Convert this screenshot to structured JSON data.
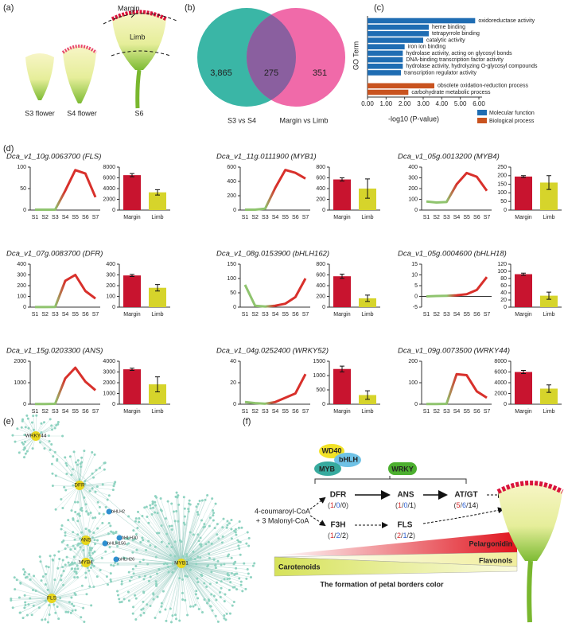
{
  "panels": {
    "a": {
      "label": "(a)",
      "margin": "Margin",
      "limb": "Limb",
      "stages": [
        "S3 flower",
        "S4 flower",
        "S6"
      ]
    },
    "b": {
      "label": "(b)",
      "only_left": "3,865",
      "overlap": "275",
      "only_right": "351",
      "left_name": "S3 vs S4",
      "right_name": "Margin vs Limb"
    },
    "c": {
      "label": "(c)"
    },
    "d": {
      "label": "(d)"
    },
    "e": {
      "label": "(e)",
      "nodes": [
        "WRKY44",
        "DFR",
        "ANS",
        "MYB4",
        "FLS",
        "MYB1",
        "bHLH2",
        "bHLH156",
        "bHLH30",
        "bHLH26"
      ]
    },
    "f": {
      "label": "(f)",
      "regulators": [
        "WD40",
        "bHLH",
        "MYB",
        "WRKY"
      ],
      "substrate": [
        "4-coumaroyl-CoA",
        "+ 3 Malonyl-CoA"
      ],
      "steps": [
        {
          "name": "DFR",
          "counts": [
            "(",
            "1",
            "/",
            "0",
            "/",
            "0",
            ")"
          ]
        },
        {
          "name": "ANS",
          "counts": [
            "(",
            "1",
            "/",
            "0",
            "/",
            "1",
            ")"
          ]
        },
        {
          "name": "AT/GT",
          "counts": [
            "(",
            "5",
            "/",
            "6",
            "/",
            "14",
            ")"
          ]
        },
        {
          "name": "F3H",
          "counts": [
            "(",
            "1",
            "/",
            "2",
            "/",
            "2",
            ")"
          ]
        },
        {
          "name": "FLS",
          "counts": [
            "(",
            "2",
            "/",
            "1",
            "/",
            "2",
            ")"
          ]
        }
      ],
      "pigments": [
        "Pelargonidin",
        "Flavonols",
        "Carotenoids"
      ],
      "caption": "The formation of petal borders color"
    }
  },
  "chart_data": [
    {
      "type": "hbar",
      "ylabel": "GO Term",
      "xlabel": "-log10 (P-value)",
      "categories": [
        "oxidoreductase activity",
        "heme binding",
        "tetrapyrrole binding",
        "catalytic activity",
        "iron ion binding",
        "hydrolase activity, acting on glycosyl bonds",
        "DNA-binding transcription factor activity",
        "hydrolase activity, hydrolyzing O-glycosyl compounds",
        "transcription regulator activity",
        null,
        "obsolete oxidation-reduction process",
        "carbohydrate metabolic process"
      ],
      "series": [
        {
          "name": "Molecular function",
          "color": "#1f6db3",
          "values": [
            5.8,
            3.3,
            3.3,
            3.0,
            2.0,
            1.9,
            1.9,
            1.9,
            1.8,
            null,
            null,
            null
          ]
        },
        {
          "name": "Biological process",
          "color": "#c9531f",
          "values": [
            null,
            null,
            null,
            null,
            null,
            null,
            null,
            null,
            null,
            null,
            3.6,
            2.2
          ]
        }
      ],
      "xlim": [
        0,
        6
      ],
      "xticks": [
        {
          "value": 0,
          "label": "0.00"
        },
        {
          "value": 1,
          "label": "1.00"
        },
        {
          "value": 2,
          "label": "2.00"
        },
        {
          "value": 3,
          "label": "3.00"
        },
        {
          "value": 4,
          "label": "4.00"
        },
        {
          "value": 5,
          "label": "5.00"
        },
        {
          "value": 6,
          "label": "6.00"
        }
      ]
    },
    {
      "type": "line",
      "title": "Dca_v1_10g.0063700 (FLS)",
      "categories": [
        "S1",
        "S2",
        "S3",
        "S4",
        "S5",
        "S6",
        "S7"
      ],
      "values": [
        1,
        1,
        1,
        45,
        93,
        85,
        30
      ],
      "ylim": [
        0,
        100
      ],
      "yticks": [
        0,
        50,
        100
      ],
      "colors": [
        "#8fc46e",
        "#d8302b"
      ]
    },
    {
      "type": "bar",
      "categories": [
        "Margin",
        "Limb"
      ],
      "values": [
        6500,
        3300
      ],
      "errors": [
        300,
        500
      ],
      "colors": [
        "#c8142f",
        "#d6d42b"
      ],
      "ylim": [
        0,
        8000
      ],
      "yticks": [
        0,
        2000,
        4000,
        6000,
        8000
      ]
    },
    {
      "type": "line",
      "title": "Dca_v1_11g.0111900 (MYB1)",
      "categories": [
        "S1",
        "S2",
        "S3",
        "S4",
        "S5",
        "S6",
        "S7"
      ],
      "values": [
        5,
        5,
        20,
        310,
        560,
        520,
        440
      ],
      "ylim": [
        0,
        600
      ],
      "yticks": [
        0,
        200,
        400,
        600
      ],
      "colors": [
        "#8fc46e",
        "#d8302b"
      ]
    },
    {
      "type": "bar",
      "categories": [
        "Margin",
        "Limb"
      ],
      "values": [
        570,
        400
      ],
      "errors": [
        30,
        180
      ],
      "colors": [
        "#c8142f",
        "#d6d42b"
      ],
      "ylim": [
        0,
        800
      ],
      "yticks": [
        0,
        200,
        400,
        600,
        800
      ]
    },
    {
      "type": "line",
      "title": "Dca_v1_05g.0013200 (MYB4)",
      "categories": [
        "S1",
        "S2",
        "S3",
        "S4",
        "S5",
        "S6",
        "S7"
      ],
      "values": [
        80,
        70,
        75,
        240,
        345,
        310,
        180
      ],
      "ylim": [
        0,
        400
      ],
      "yticks": [
        0,
        100,
        200,
        300,
        400
      ],
      "colors": [
        "#8fc46e",
        "#d8302b"
      ]
    },
    {
      "type": "bar",
      "categories": [
        "Margin",
        "Limb"
      ],
      "values": [
        195,
        160
      ],
      "errors": [
        5,
        40
      ],
      "colors": [
        "#c8142f",
        "#d6d42b"
      ],
      "ylim": [
        0,
        250
      ],
      "yticks": [
        0,
        50,
        100,
        150,
        200,
        250
      ]
    },
    {
      "type": "line",
      "title": "Dca_v1_07g.0083700 (DFR)",
      "categories": [
        "S1",
        "S2",
        "S3",
        "S4",
        "S5",
        "S6",
        "S7"
      ],
      "values": [
        1,
        1,
        2,
        245,
        300,
        150,
        80
      ],
      "ylim": [
        0,
        400
      ],
      "yticks": [
        0,
        100,
        200,
        300,
        400
      ],
      "colors": [
        "#8fc46e",
        "#d8302b"
      ]
    },
    {
      "type": "bar",
      "categories": [
        "Margin",
        "Limb"
      ],
      "values": [
        295,
        180
      ],
      "errors": [
        10,
        30
      ],
      "colors": [
        "#c8142f",
        "#d6d42b"
      ],
      "ylim": [
        0,
        400
      ],
      "yticks": [
        0,
        100,
        200,
        300,
        400
      ]
    },
    {
      "type": "line",
      "title": "Dca_v1_08g.0153900 (bHLH162)",
      "categories": [
        "S1",
        "S2",
        "S3",
        "S4",
        "S5",
        "S6",
        "S7"
      ],
      "values": [
        78,
        5,
        2,
        5,
        12,
        35,
        100
      ],
      "ylim": [
        0,
        150
      ],
      "yticks": [
        0,
        50,
        100,
        150
      ],
      "colors": [
        "#8fc46e",
        "#d8302b"
      ]
    },
    {
      "type": "bar",
      "categories": [
        "Margin",
        "Limb"
      ],
      "values": [
        575,
        165
      ],
      "errors": [
        40,
        60
      ],
      "colors": [
        "#c8142f",
        "#d6d42b"
      ],
      "ylim": [
        0,
        800
      ],
      "yticks": [
        0,
        200,
        400,
        600,
        800
      ]
    },
    {
      "type": "line",
      "title": "Dca_v1_05g.0004600 (bHLH18)",
      "categories": [
        "S1",
        "S2",
        "S3",
        "S4",
        "S5",
        "S6",
        "S7"
      ],
      "values": [
        0,
        0.2,
        0.3,
        0.5,
        1,
        3,
        9
      ],
      "ylim": [
        -5,
        15
      ],
      "yticks": [
        -5,
        0,
        5,
        10,
        15
      ],
      "colors": [
        "#8fc46e",
        "#d8302b"
      ]
    },
    {
      "type": "bar",
      "categories": [
        "Margin",
        "Limb"
      ],
      "values": [
        92,
        32
      ],
      "errors": [
        3,
        10
      ],
      "colors": [
        "#c8142f",
        "#d6d42b"
      ],
      "ylim": [
        0,
        120
      ],
      "yticks": [
        0,
        20,
        40,
        60,
        80,
        100,
        120
      ]
    },
    {
      "type": "line",
      "title": "Dca_v1_15g.0203300 (ANS)",
      "categories": [
        "S1",
        "S2",
        "S3",
        "S4",
        "S5",
        "S6",
        "S7"
      ],
      "values": [
        10,
        10,
        20,
        1200,
        1700,
        1050,
        650
      ],
      "ylim": [
        0,
        2000
      ],
      "yticks": [
        0,
        1000,
        2000
      ],
      "colors": [
        "#8fc46e",
        "#d8302b"
      ]
    },
    {
      "type": "bar",
      "categories": [
        "Margin",
        "Limb"
      ],
      "values": [
        3250,
        1850
      ],
      "errors": [
        100,
        700
      ],
      "colors": [
        "#c8142f",
        "#d6d42b"
      ],
      "ylim": [
        0,
        4000
      ],
      "yticks": [
        0,
        1000,
        2000,
        3000,
        4000
      ]
    },
    {
      "type": "line",
      "title": "Dca_v1_04g.0252400 (WRKY52)",
      "categories": [
        "S1",
        "S2",
        "S3",
        "S4",
        "S5",
        "S6",
        "S7"
      ],
      "values": [
        2,
        1,
        0.5,
        2,
        6,
        10,
        28
      ],
      "ylim": [
        0,
        40
      ],
      "yticks": [
        0,
        20,
        40
      ],
      "colors": [
        "#8fc46e",
        "#d8302b"
      ]
    },
    {
      "type": "bar",
      "categories": [
        "Margin",
        "Limb"
      ],
      "values": [
        1230,
        320
      ],
      "errors": [
        100,
        150
      ],
      "colors": [
        "#c8142f",
        "#d6d42b"
      ],
      "ylim": [
        0,
        1500
      ],
      "yticks": [
        0,
        500,
        1000,
        1500
      ]
    },
    {
      "type": "line",
      "title": "Dca_v1_09g.0073500 (WRKY44)",
      "categories": [
        "S1",
        "S2",
        "S3",
        "S4",
        "S5",
        "S6",
        "S7"
      ],
      "values": [
        1,
        1,
        2,
        140,
        135,
        60,
        30
      ],
      "ylim": [
        0,
        200
      ],
      "yticks": [
        0,
        100,
        200
      ],
      "colors": [
        "#8fc46e",
        "#d8302b"
      ]
    },
    {
      "type": "bar",
      "categories": [
        "Margin",
        "Limb"
      ],
      "values": [
        6000,
        2900
      ],
      "errors": [
        300,
        700
      ],
      "colors": [
        "#c8142f",
        "#d6d42b"
      ],
      "ylim": [
        0,
        8000
      ],
      "yticks": [
        0,
        2000,
        4000,
        6000,
        8000
      ]
    }
  ]
}
